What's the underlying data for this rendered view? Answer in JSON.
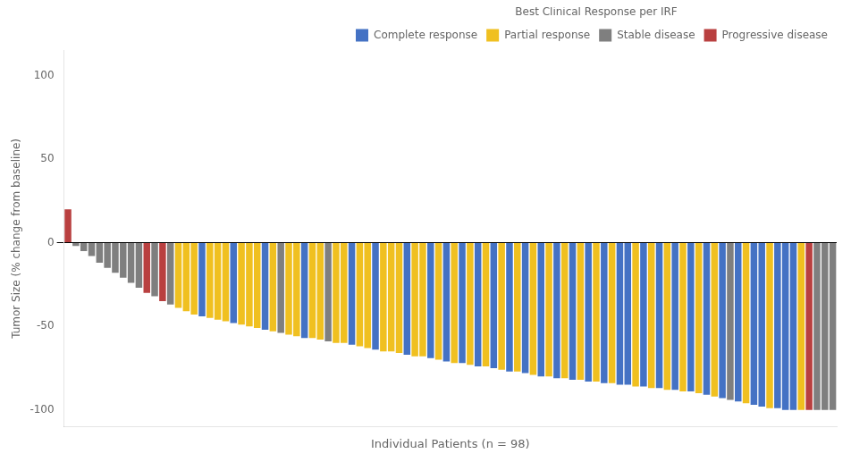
{
  "chart_data": {
    "type": "bar",
    "xlabel": "Individual Patients (n = 98)",
    "ylabel": "Tumor Size (% change from baseline)",
    "legend_title": "Best Clinical Response per IRF",
    "categories": [
      null,
      null,
      null,
      null,
      null,
      null,
      null,
      null,
      null,
      null,
      null,
      null,
      null,
      null,
      null,
      null,
      null,
      null,
      null,
      null,
      null,
      null,
      null,
      null,
      null,
      null,
      null,
      null,
      null,
      null,
      null,
      null,
      null,
      null,
      null,
      null,
      null,
      null,
      null,
      null,
      null,
      null,
      null,
      null,
      null,
      null,
      null,
      null,
      null,
      null,
      null,
      null,
      null,
      null,
      null,
      null,
      null,
      null,
      null,
      null,
      null,
      null,
      null,
      null,
      null,
      null,
      null,
      null,
      null,
      null,
      null,
      null,
      null,
      null,
      null,
      null,
      null,
      null,
      null,
      null,
      null,
      null,
      null,
      null,
      null,
      null,
      null,
      null,
      null,
      null,
      null,
      null,
      null,
      null,
      null,
      null,
      null,
      null
    ],
    "series": [
      {
        "name": "Complete response",
        "color": "#4472C4",
        "values": [
          null,
          null,
          null,
          null,
          null,
          null,
          null,
          null,
          null,
          null,
          null,
          null,
          null,
          null,
          null,
          null,
          null,
          -44,
          null,
          null,
          null,
          -48,
          null,
          null,
          null,
          -52,
          null,
          null,
          null,
          null,
          -57,
          null,
          null,
          null,
          null,
          null,
          -61,
          null,
          null,
          -64,
          null,
          null,
          null,
          -67,
          null,
          null,
          -69,
          null,
          -71,
          null,
          -72,
          null,
          -74,
          null,
          -75,
          null,
          -77,
          null,
          -78,
          null,
          -80,
          null,
          -81,
          null,
          -82,
          null,
          -83,
          null,
          -84,
          null,
          -85,
          -85,
          null,
          -86,
          null,
          -87,
          null,
          -88,
          null,
          -89,
          null,
          -91,
          null,
          -93,
          null,
          -95,
          null,
          -97,
          -98,
          null,
          -99,
          -100,
          -100,
          null,
          null,
          null,
          null,
          null
        ]
      },
      {
        "name": "Partial response",
        "color": "#F0C020",
        "values": [
          null,
          null,
          null,
          null,
          null,
          null,
          null,
          null,
          null,
          null,
          null,
          null,
          null,
          null,
          -39,
          -41,
          -43,
          null,
          -45,
          -46,
          -47,
          null,
          -49,
          -50,
          -51,
          null,
          -53,
          null,
          -55,
          -56,
          null,
          -57,
          -58,
          null,
          -60,
          -60,
          null,
          -62,
          -63,
          null,
          -65,
          -65,
          -66,
          null,
          -68,
          -68,
          null,
          -70,
          null,
          -72,
          null,
          -73,
          null,
          -74,
          null,
          -76,
          null,
          -77,
          null,
          -79,
          null,
          -80,
          null,
          -81,
          null,
          -82,
          null,
          -83,
          null,
          -84,
          null,
          null,
          -86,
          null,
          -87,
          null,
          -88,
          null,
          -89,
          null,
          -90,
          null,
          -92,
          null,
          null,
          null,
          -96,
          null,
          null,
          -99,
          null,
          null,
          null,
          -100,
          null,
          null,
          null,
          null
        ]
      },
      {
        "name": "Stable disease",
        "color": "#7F7F7F",
        "values": [
          null,
          -2,
          -5,
          -8,
          -12,
          -15,
          -18,
          -21,
          -24,
          -27,
          null,
          -32,
          null,
          -37,
          null,
          null,
          null,
          null,
          null,
          null,
          null,
          null,
          null,
          null,
          null,
          null,
          null,
          -54,
          null,
          null,
          null,
          null,
          null,
          -59,
          null,
          null,
          null,
          null,
          null,
          null,
          null,
          null,
          null,
          null,
          null,
          null,
          null,
          null,
          null,
          null,
          null,
          null,
          null,
          null,
          null,
          null,
          null,
          null,
          null,
          null,
          null,
          null,
          null,
          null,
          null,
          null,
          null,
          null,
          null,
          null,
          null,
          null,
          null,
          null,
          null,
          null,
          null,
          null,
          null,
          null,
          null,
          null,
          null,
          null,
          -94,
          null,
          null,
          null,
          null,
          null,
          null,
          null,
          null,
          null,
          null,
          -100,
          -100,
          -100
        ]
      },
      {
        "name": "Progressive disease",
        "color": "#B94040",
        "values": [
          20,
          null,
          null,
          null,
          null,
          null,
          null,
          null,
          null,
          null,
          -30,
          null,
          -35,
          null,
          null,
          null,
          null,
          null,
          null,
          null,
          null,
          null,
          null,
          null,
          null,
          null,
          null,
          null,
          null,
          null,
          null,
          null,
          null,
          null,
          null,
          null,
          null,
          null,
          null,
          null,
          null,
          null,
          null,
          null,
          null,
          null,
          null,
          null,
          null,
          null,
          null,
          null,
          null,
          null,
          null,
          null,
          null,
          null,
          null,
          null,
          null,
          null,
          null,
          null,
          null,
          null,
          null,
          null,
          null,
          null,
          null,
          null,
          null,
          null,
          null,
          null,
          null,
          null,
          null,
          null,
          null,
          null,
          null,
          null,
          null,
          null,
          null,
          null,
          null,
          null,
          null,
          null,
          null,
          null,
          -100,
          null,
          null,
          null
        ]
      }
    ],
    "stacked": true,
    "ylim": [
      -110,
      115
    ],
    "yticks": [
      -100,
      -50,
      0,
      50,
      100
    ],
    "grid": false,
    "legend": "upper right",
    "tick_labels": "y"
  }
}
